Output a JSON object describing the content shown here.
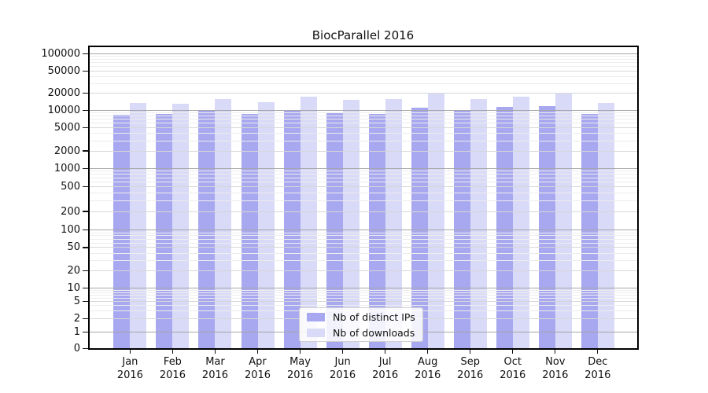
{
  "chart_data": {
    "type": "bar",
    "title": "BiocParallel 2016",
    "scale": "symlog-y",
    "grid": true,
    "legend_position": "bottom-center",
    "categories": [
      "Jan",
      "Feb",
      "Mar",
      "Apr",
      "May",
      "Jun",
      "Jul",
      "Aug",
      "Sep",
      "Oct",
      "Nov",
      "Dec"
    ],
    "x_year": "2016",
    "y_ticks": [
      100000,
      50000,
      20000,
      10000,
      5000,
      2000,
      1000,
      500,
      200,
      100,
      50,
      20,
      10,
      5,
      2,
      1,
      0
    ],
    "ylim": [
      0,
      134000
    ],
    "series": [
      {
        "name": "Nb of distinct IPs",
        "color": "#a8a8f0",
        "values": [
          8400,
          8700,
          9700,
          8700,
          9900,
          9100,
          8800,
          11300,
          10000,
          11400,
          12100,
          8600
        ]
      },
      {
        "name": "Nb of downloads",
        "color": "#d9d9f8",
        "values": [
          13600,
          13200,
          15700,
          14000,
          17600,
          15500,
          16000,
          20200,
          16000,
          17800,
          19700,
          13500
        ]
      }
    ]
  }
}
